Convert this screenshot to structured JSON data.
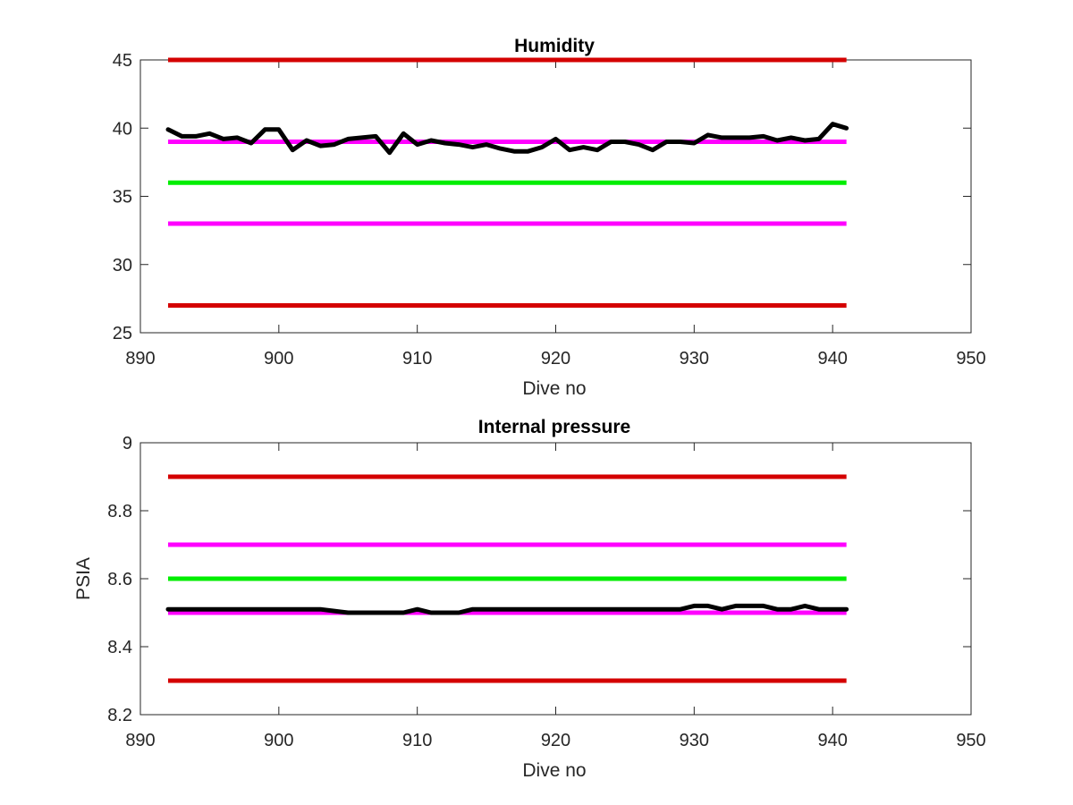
{
  "colors": {
    "red_limit": "#d40000",
    "magenta_limit": "#ff00ff",
    "green_target": "#00ee00",
    "data_line": "#000000",
    "axes": "#262626"
  },
  "chart_data": [
    {
      "type": "line",
      "title": "Humidity",
      "xlabel": "Dive no",
      "ylabel": "",
      "xlim": [
        890,
        950
      ],
      "ylim": [
        25,
        45
      ],
      "xticks": [
        890,
        900,
        910,
        920,
        930,
        940,
        950
      ],
      "yticks": [
        25,
        30,
        35,
        40,
        45
      ],
      "grid": false,
      "reference_lines": [
        {
          "y": 45,
          "x": [
            892,
            941
          ],
          "color": "red"
        },
        {
          "y": 39,
          "x": [
            892,
            941
          ],
          "color": "magenta"
        },
        {
          "y": 36,
          "x": [
            892,
            941
          ],
          "color": "green"
        },
        {
          "y": 33,
          "x": [
            892,
            941
          ],
          "color": "magenta"
        },
        {
          "y": 27,
          "x": [
            892,
            941
          ],
          "color": "red"
        }
      ],
      "series": [
        {
          "x": [
            892,
            893,
            894,
            895,
            896,
            897,
            898,
            899,
            900,
            901,
            902,
            903,
            904,
            905,
            906,
            907,
            908,
            909,
            910,
            911,
            912,
            913,
            914,
            915,
            916,
            917,
            918,
            919,
            920,
            921,
            922,
            923,
            924,
            925,
            926,
            927,
            928,
            929,
            930,
            931,
            932,
            933,
            934,
            935,
            936,
            937,
            938,
            939,
            940,
            941
          ],
          "y": [
            39.9,
            39.4,
            39.4,
            39.6,
            39.2,
            39.3,
            38.9,
            39.9,
            39.9,
            38.4,
            39.1,
            38.7,
            38.8,
            39.2,
            39.3,
            39.4,
            38.2,
            39.6,
            38.8,
            39.1,
            38.9,
            38.8,
            38.6,
            38.8,
            38.5,
            38.3,
            38.3,
            38.6,
            39.2,
            38.4,
            38.6,
            38.4,
            39.0,
            39.0,
            38.8,
            38.4,
            39.0,
            39.0,
            38.9,
            39.5,
            39.3,
            39.3,
            39.3,
            39.4,
            39.1,
            39.3,
            39.1,
            39.2,
            40.3,
            40.0
          ]
        }
      ]
    },
    {
      "type": "line",
      "title": "Internal pressure",
      "xlabel": "Dive no",
      "ylabel": "PSIA",
      "xlim": [
        890,
        950
      ],
      "ylim": [
        8.2,
        9
      ],
      "xticks": [
        890,
        900,
        910,
        920,
        930,
        940,
        950
      ],
      "yticks": [
        8.2,
        8.4,
        8.6,
        8.8,
        9
      ],
      "ytick_labels": [
        "8.2",
        "8.4",
        "8.6",
        "8.8",
        "9"
      ],
      "grid": false,
      "reference_lines": [
        {
          "y": 8.9,
          "x": [
            892,
            941
          ],
          "color": "red"
        },
        {
          "y": 8.7,
          "x": [
            892,
            941
          ],
          "color": "magenta"
        },
        {
          "y": 8.6,
          "x": [
            892,
            941
          ],
          "color": "green"
        },
        {
          "y": 8.5,
          "x": [
            892,
            941
          ],
          "color": "magenta"
        },
        {
          "y": 8.3,
          "x": [
            892,
            941
          ],
          "color": "red"
        }
      ],
      "series": [
        {
          "x": [
            892,
            893,
            894,
            895,
            896,
            897,
            898,
            899,
            900,
            901,
            902,
            903,
            904,
            905,
            906,
            907,
            908,
            909,
            910,
            911,
            912,
            913,
            914,
            915,
            916,
            917,
            918,
            919,
            920,
            921,
            922,
            923,
            924,
            925,
            926,
            927,
            928,
            929,
            930,
            931,
            932,
            933,
            934,
            935,
            936,
            937,
            938,
            939,
            940,
            941
          ],
          "y": [
            8.51,
            8.51,
            8.51,
            8.51,
            8.51,
            8.51,
            8.51,
            8.51,
            8.51,
            8.51,
            8.51,
            8.51,
            8.505,
            8.5,
            8.5,
            8.5,
            8.5,
            8.5,
            8.51,
            8.5,
            8.5,
            8.5,
            8.51,
            8.51,
            8.51,
            8.51,
            8.51,
            8.51,
            8.51,
            8.51,
            8.51,
            8.51,
            8.51,
            8.51,
            8.51,
            8.51,
            8.51,
            8.51,
            8.52,
            8.52,
            8.51,
            8.52,
            8.52,
            8.52,
            8.51,
            8.51,
            8.52,
            8.51,
            8.51,
            8.51
          ]
        }
      ]
    }
  ]
}
